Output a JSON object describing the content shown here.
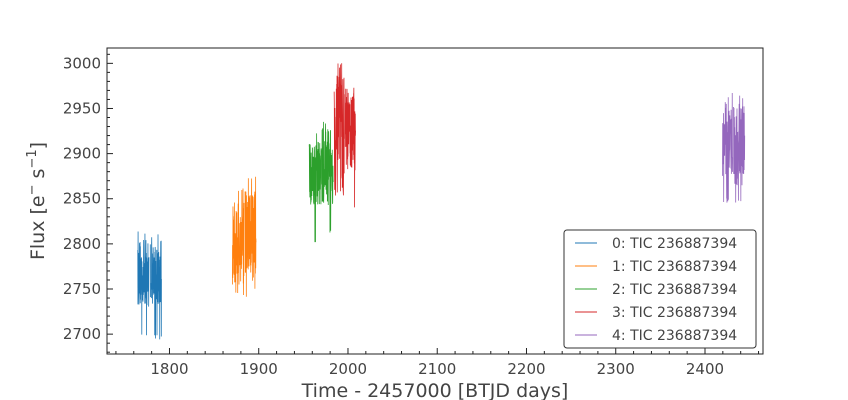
{
  "chart_data": {
    "type": "line",
    "title": "",
    "xlabel": "Time - 2457000 [BTJD days]",
    "ylabel_parts": {
      "base": "Flux [e",
      "sup1": "−",
      "mid": " s",
      "sup2": "−1",
      "end": "]"
    },
    "xlim": [
      1730,
      2465
    ],
    "ylim": [
      2678,
      3017
    ],
    "xticks": [
      1800,
      1900,
      2000,
      2100,
      2200,
      2300,
      2400
    ],
    "yticks": [
      2700,
      2750,
      2800,
      2850,
      2900,
      2950,
      3000
    ],
    "grid": false,
    "legend_position": "lower-right",
    "series": [
      {
        "name": "0: TIC 236887394",
        "color": "#1f77b4",
        "segments": [
          {
            "x": [
              1764.5,
              1777.0
            ],
            "y_low": 2696,
            "y_high": 2814,
            "y_center": 2768
          },
          {
            "x": [
              1778.5,
              1791.0
            ],
            "y_low": 2693,
            "y_high": 2812,
            "y_center": 2768
          }
        ]
      },
      {
        "name": "1: TIC 236887394",
        "color": "#ff7f0e",
        "segments": [
          {
            "x": [
              1870.5,
              1883.5
            ],
            "y_low": 2741,
            "y_high": 2862,
            "y_center": 2800
          },
          {
            "x": [
              1884.5,
              1897.0
            ],
            "y_low": 2737,
            "y_high": 2877,
            "y_center": 2806
          }
        ]
      },
      {
        "name": "2: TIC 236887394",
        "color": "#2ca02c",
        "segments": [
          {
            "x": [
              1956.5,
              1970.0
            ],
            "y_low": 2801,
            "y_high": 2925,
            "y_center": 2880
          },
          {
            "x": [
              1970.5,
              1983.5
            ],
            "y_low": 2810,
            "y_high": 2938,
            "y_center": 2885
          }
        ]
      },
      {
        "name": "3: TIC 236887394",
        "color": "#d62728",
        "segments": [
          {
            "x": [
              1984.5,
              1996.0
            ],
            "y_low": 2838,
            "y_high": 3001,
            "y_center": 2920
          },
          {
            "x": [
              1997.0,
              2008.5
            ],
            "y_low": 2840,
            "y_high": 2977,
            "y_center": 2924
          }
        ]
      },
      {
        "name": "4: TIC 236887394",
        "color": "#9467bd",
        "segments": [
          {
            "x": [
              2419.5,
              2431.0
            ],
            "y_low": 2845,
            "y_high": 2968,
            "y_center": 2915
          },
          {
            "x": [
              2432.0,
              2444.5
            ],
            "y_low": 2842,
            "y_high": 2965,
            "y_center": 2910
          }
        ]
      }
    ]
  }
}
